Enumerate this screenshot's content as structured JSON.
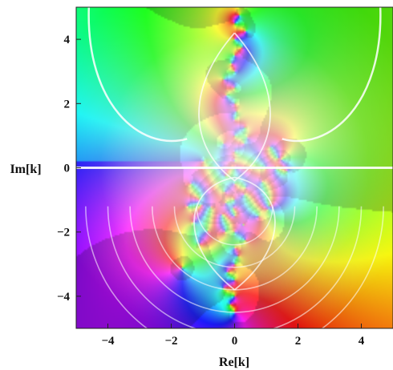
{
  "chart_data": {
    "type": "heatmap",
    "description_kind": "domain-coloring",
    "title": "",
    "xlabel": "Re[k]",
    "ylabel": "Im[k]",
    "xlim": [
      -5,
      5
    ],
    "ylim": [
      -5,
      5
    ],
    "x_ticks": [
      -4,
      -2,
      0,
      2,
      4
    ],
    "y_ticks": [
      -4,
      -2,
      0,
      2,
      4
    ],
    "x_tick_labels": [
      "−4",
      "−2",
      "0",
      "2",
      "4"
    ],
    "y_tick_labels": [
      "−4",
      "−2",
      "0",
      "2",
      "4"
    ],
    "grid": false,
    "legend": "none"
  }
}
